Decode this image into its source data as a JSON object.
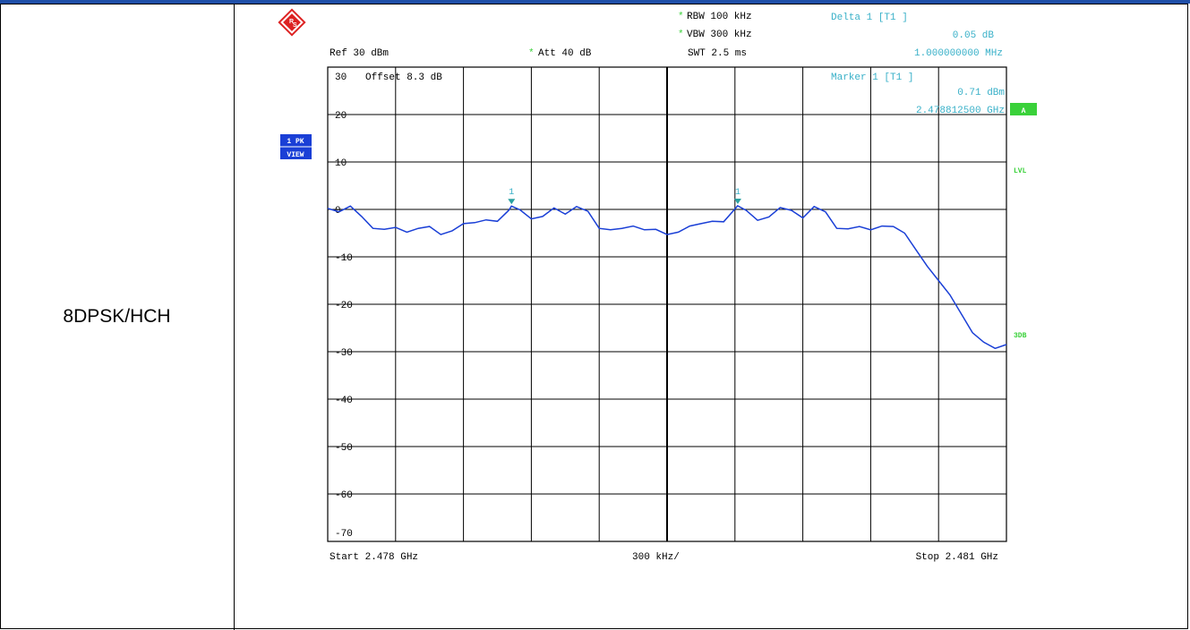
{
  "row_label": "8DPSK/HCH",
  "colors": {
    "trace": "#1a3fd6",
    "annotation": "#38b0c8",
    "grid": "#000000",
    "side_badge_bg": "#1a3fd6",
    "green": "#3ad13a"
  },
  "header": {
    "logo_icon": "rohde-schwarz-logo-icon",
    "rbw": "RBW  100 kHz",
    "vbw": "VBW  300 kHz",
    "swt": "SWT  2.5 ms",
    "ref": "Ref   30 dBm",
    "att": "Att   40 dB",
    "rbw_star": "*",
    "vbw_star": "*",
    "att_star": "*"
  },
  "delta_readout": {
    "title": "Delta 1 [T1 ]",
    "level": "0.05 dB",
    "freq": "1.000000000 MHz"
  },
  "marker_readout": {
    "title": "Marker 1 [T1 ]",
    "level": "0.71 dBm",
    "freq": "2.478812500 GHz"
  },
  "screen_text": {
    "offset": "Offset    8.3 dB",
    "trace_badge_line1": "1 PK",
    "trace_badge_line2": "VIEW",
    "trace_label": "A",
    "lvl_label": "LVL",
    "threshold_label": "3DB"
  },
  "footer": {
    "start": "Start  2.478 GHz",
    "span": "300 kHz/",
    "stop": "Stop  2.481 GHz"
  },
  "chart_data": {
    "type": "line",
    "title": "",
    "xlabel": "",
    "ylabel": "",
    "xlim": [
      2.478,
      2.481
    ],
    "ylim": [
      -70,
      30
    ],
    "x_unit": "GHz",
    "y_unit": "dBm",
    "grid": true,
    "y_ticks": [
      30,
      20,
      10,
      0,
      -10,
      -20,
      -30,
      -40,
      -50,
      -60,
      -70
    ],
    "y_tick_labels": [
      "30",
      "20",
      "10",
      "0",
      "-10",
      "-20",
      "-30",
      "-40",
      "-50",
      "-60",
      "-70"
    ],
    "markers": [
      {
        "label": "1",
        "x": 2.4788125,
        "y": 0.71
      },
      {
        "label": "1",
        "x": 2.4798125,
        "y": 0.76
      }
    ],
    "series": [
      {
        "x": [
          2.478,
          2.47805,
          2.4781,
          2.47815,
          2.4782,
          2.47825,
          2.4783,
          2.47835,
          2.4784,
          2.47845,
          2.4785,
          2.47855,
          2.4786,
          2.47865,
          2.4787,
          2.47875,
          2.4788,
          2.478812,
          2.47885,
          2.4789,
          2.47895,
          2.479,
          2.47905,
          2.4791,
          2.47915,
          2.4792,
          2.47925,
          2.4793,
          2.47935,
          2.4794,
          2.47945,
          2.4795,
          2.47955,
          2.4796,
          2.47965,
          2.4797,
          2.47975,
          2.4798,
          2.479812,
          2.47985,
          2.4799,
          2.47995,
          2.48,
          2.48005,
          2.4801,
          2.48015,
          2.4802,
          2.48025,
          2.4803,
          2.48035,
          2.4804,
          2.48045,
          2.4805,
          2.48055,
          2.4806,
          2.48065,
          2.4807,
          2.48075,
          2.4808,
          2.48085,
          2.4809,
          2.48095,
          2.481
        ],
        "y": [
          0.2,
          -0.5,
          0.7,
          -1.5,
          -4.0,
          -4.2,
          -3.8,
          -4.8,
          -4.0,
          -3.6,
          -5.3,
          -4.5,
          -3.0,
          -2.8,
          -2.2,
          -2.5,
          -0.2,
          0.7,
          -0.1,
          -2.0,
          -1.5,
          0.3,
          -1.0,
          0.6,
          -0.4,
          -4.0,
          -4.3,
          -4.0,
          -3.5,
          -4.3,
          -4.2,
          -5.3,
          -4.8,
          -3.5,
          -3.0,
          -2.5,
          -2.6,
          0.1,
          0.76,
          -0.2,
          -2.3,
          -1.6,
          0.4,
          -0.2,
          -1.8,
          0.6,
          -0.5,
          -4.0,
          -4.1,
          -3.6,
          -4.3,
          -3.5,
          -3.6,
          -5.0,
          -8.5,
          -12.0,
          -15.0,
          -18.0,
          -22.0,
          -26.0,
          -28.0,
          -29.3,
          -28.5
        ]
      }
    ]
  }
}
